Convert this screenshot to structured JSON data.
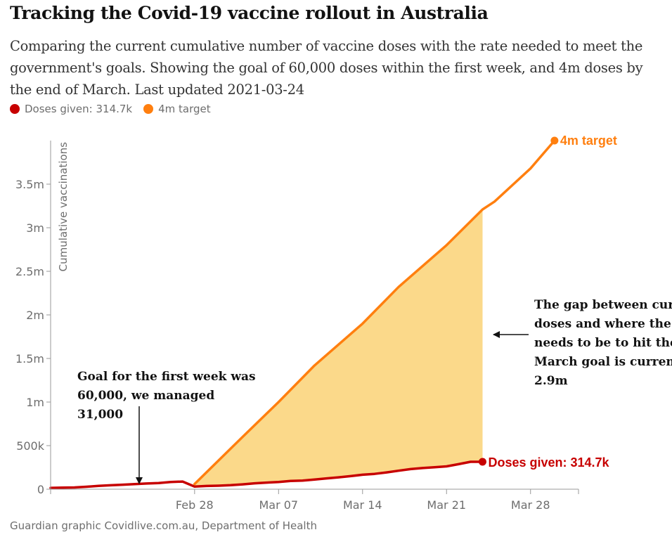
{
  "header": {
    "title": "Tracking the Covid-19 vaccine rollout in Australia",
    "subtitle": "Comparing the current cumulative number of vaccine doses with the rate needed to meet the government's goals. Showing the goal of 60,000 doses within the first week, and 4m doses by the end of March. Last updated 2021-03-24"
  },
  "legend": [
    {
      "label": "Doses given: 314.7k",
      "color": "#c70000"
    },
    {
      "label": "4m target",
      "color": "#ff7f0f"
    }
  ],
  "source": "Guardian graphic Covidlive.com.au, Department of Health",
  "chart_data": {
    "type": "line",
    "ylabel": "Cumulative vaccinations",
    "ylim": [
      0,
      4000000
    ],
    "yticks": [
      {
        "value": 0,
        "label": "0"
      },
      {
        "value": 500000,
        "label": "500k"
      },
      {
        "value": 1000000,
        "label": "1m"
      },
      {
        "value": 1500000,
        "label": "1.5m"
      },
      {
        "value": 2000000,
        "label": "2m"
      },
      {
        "value": 2500000,
        "label": "2.5m"
      },
      {
        "value": 3000000,
        "label": "3m"
      },
      {
        "value": 3500000,
        "label": "3.5m"
      }
    ],
    "xlim_day": [
      -12,
      32
    ],
    "xticks": [
      {
        "day": 0,
        "label": "Feb 28"
      },
      {
        "day": 7,
        "label": "Mar 07"
      },
      {
        "day": 14,
        "label": "Mar 14"
      },
      {
        "day": 21,
        "label": "Mar 21"
      },
      {
        "day": 28,
        "label": "Mar 28"
      }
    ],
    "series": [
      {
        "name": "Doses given",
        "color": "#c70000",
        "end_label": "Doses given: 314.7k",
        "points": [
          [
            -12,
            15000
          ],
          [
            -11,
            18000
          ],
          [
            -10,
            20000
          ],
          [
            -9,
            28000
          ],
          [
            -8,
            38000
          ],
          [
            -7,
            45000
          ],
          [
            -6,
            52000
          ],
          [
            -5,
            58000
          ],
          [
            -4,
            65000
          ],
          [
            -3,
            70000
          ],
          [
            -2,
            82000
          ],
          [
            -1,
            88000
          ],
          [
            0,
            31000
          ],
          [
            1,
            37000
          ],
          [
            2,
            40000
          ],
          [
            3,
            46000
          ],
          [
            4,
            56000
          ],
          [
            5,
            68000
          ],
          [
            6,
            76000
          ],
          [
            7,
            82000
          ],
          [
            8,
            94000
          ],
          [
            9,
            99000
          ],
          [
            10,
            111000
          ],
          [
            11,
            124000
          ],
          [
            12,
            136000
          ],
          [
            13,
            150000
          ],
          [
            14,
            166000
          ],
          [
            15,
            176000
          ],
          [
            16,
            193000
          ],
          [
            17,
            212000
          ],
          [
            18,
            231000
          ],
          [
            19,
            243000
          ],
          [
            20,
            252000
          ],
          [
            21,
            262000
          ],
          [
            22,
            287000
          ],
          [
            23,
            314700
          ],
          [
            24,
            314700
          ]
        ]
      },
      {
        "name": "4m target",
        "color": "#ff7f0f",
        "end_label": "4m target",
        "points": [
          [
            0,
            60000
          ],
          [
            4,
            600000
          ],
          [
            7,
            1000000
          ],
          [
            10,
            1420000
          ],
          [
            14,
            1900000
          ],
          [
            17,
            2320000
          ],
          [
            21,
            2800000
          ],
          [
            24,
            3210000
          ],
          [
            25,
            3300000
          ],
          [
            28,
            3680000
          ],
          [
            30,
            4000000
          ]
        ]
      }
    ],
    "gap_shading": {
      "from_day": 0,
      "to_day": 24,
      "color": "#fad276"
    },
    "annotations": [
      {
        "id": "first_week",
        "lines": [
          "Goal for the first week was",
          "60,000, we managed",
          "31,000"
        ]
      },
      {
        "id": "gap",
        "lines": [
          "The gap between current",
          "doses and where the rollout",
          "needs to be to hit the end of",
          "March goal is currently",
          "2.9m"
        ]
      }
    ]
  }
}
